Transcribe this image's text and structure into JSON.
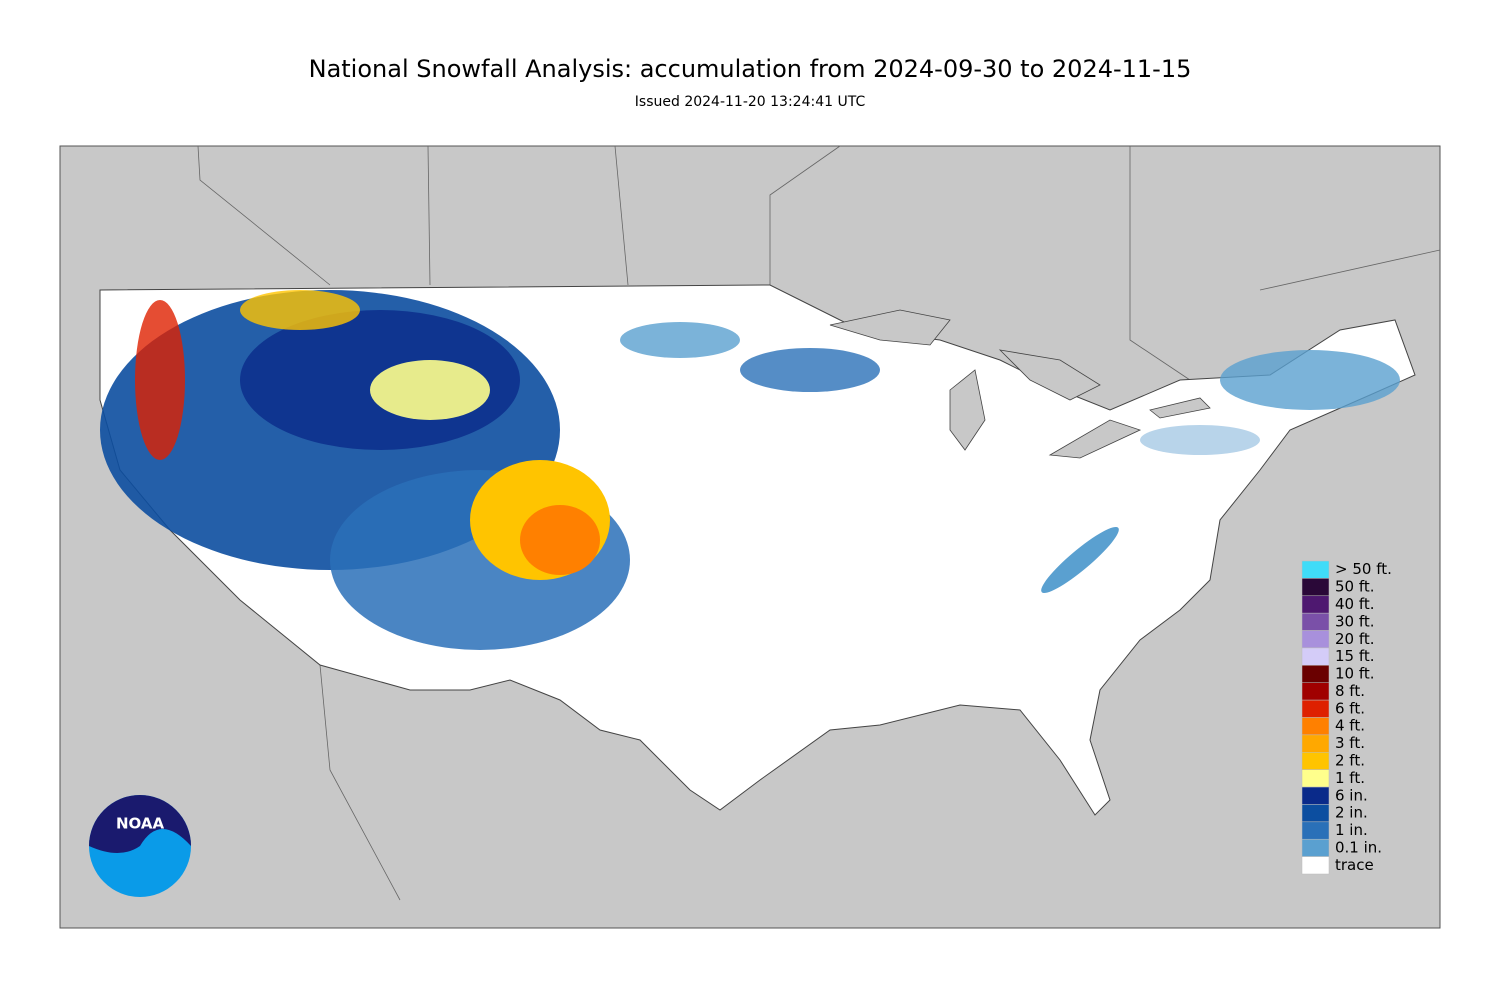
{
  "header": {
    "title": "National Snowfall Analysis: accumulation from 2024-09-30 to 2024-11-15",
    "subtitle": "Issued 2024-11-20 13:24:41 UTC"
  },
  "legend": {
    "items": [
      {
        "label": "> 50 ft.",
        "color": "#40dcf8"
      },
      {
        "label": "50 ft.",
        "color": "#2a0838"
      },
      {
        "label": "40 ft.",
        "color": "#4e1870"
      },
      {
        "label": "30 ft.",
        "color": "#7a50a8"
      },
      {
        "label": "20 ft.",
        "color": "#a890dc"
      },
      {
        "label": "15 ft.",
        "color": "#d4ccf8"
      },
      {
        "label": "10 ft.",
        "color": "#6a0000"
      },
      {
        "label": "8 ft.",
        "color": "#a00000"
      },
      {
        "label": "6 ft.",
        "color": "#de2000"
      },
      {
        "label": "4 ft.",
        "color": "#ff8000"
      },
      {
        "label": "3 ft.",
        "color": "#ffa800"
      },
      {
        "label": "2 ft.",
        "color": "#ffc400"
      },
      {
        "label": "1 ft.",
        "color": "#ffff8c"
      },
      {
        "label": "6 in.",
        "color": "#0a2a8a"
      },
      {
        "label": "2 in.",
        "color": "#0c4ea0"
      },
      {
        "label": "1 in.",
        "color": "#2a70b8"
      },
      {
        "label": "0.1 in.",
        "color": "#5aa0d0"
      },
      {
        "label": "trace",
        "color": "#ffffff"
      }
    ]
  },
  "logo": {
    "text": "NOAA"
  }
}
